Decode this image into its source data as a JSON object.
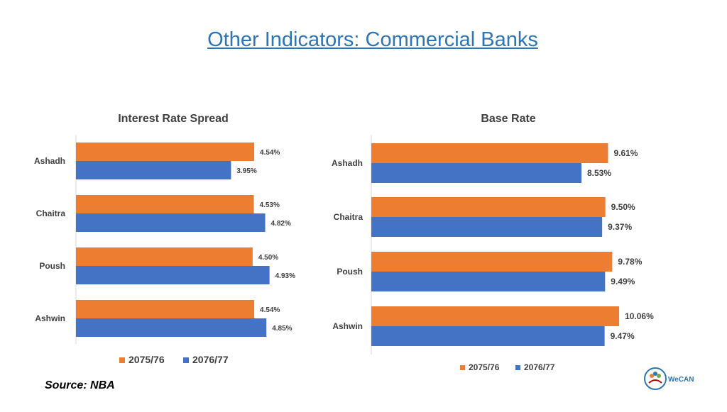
{
  "slide": {
    "title": "Other Indicators: Commercial Banks",
    "source": "Source: NBA",
    "logo_text": "WeCAN"
  },
  "colors": {
    "s2075": "#ED7D31",
    "s2076": "#4472C4"
  },
  "chart_data": [
    {
      "type": "bar",
      "orientation": "horizontal",
      "title": "Interest Rate Spread",
      "categories": [
        "Ashadh",
        "Chaitra",
        "Poush",
        "Ashwin"
      ],
      "series": [
        {
          "name": "2075/76",
          "values": [
            4.54,
            4.53,
            4.5,
            4.54
          ],
          "labels": [
            "4.54%",
            "4.53%",
            "4.50%",
            "4.54%"
          ]
        },
        {
          "name": "2076/77",
          "values": [
            3.95,
            4.82,
            4.93,
            4.85
          ],
          "labels": [
            "3.95%",
            "4.82%",
            "4.93%",
            "4.85%"
          ]
        }
      ],
      "legend": "bottom"
    },
    {
      "type": "bar",
      "orientation": "horizontal",
      "title": "Base Rate",
      "categories": [
        "Ashadh",
        "Chaitra",
        "Poush",
        "Ashwin"
      ],
      "series": [
        {
          "name": "2075/76",
          "values": [
            9.61,
            9.5,
            9.78,
            10.06
          ],
          "labels": [
            "9.61%",
            "9.50%",
            "9.78%",
            "10.06%"
          ]
        },
        {
          "name": "2076/77",
          "values": [
            8.53,
            9.37,
            9.49,
            9.47
          ],
          "labels": [
            "8.53%",
            "9.37%",
            "9.49%",
            "9.47%"
          ]
        }
      ],
      "legend": "bottom"
    }
  ]
}
